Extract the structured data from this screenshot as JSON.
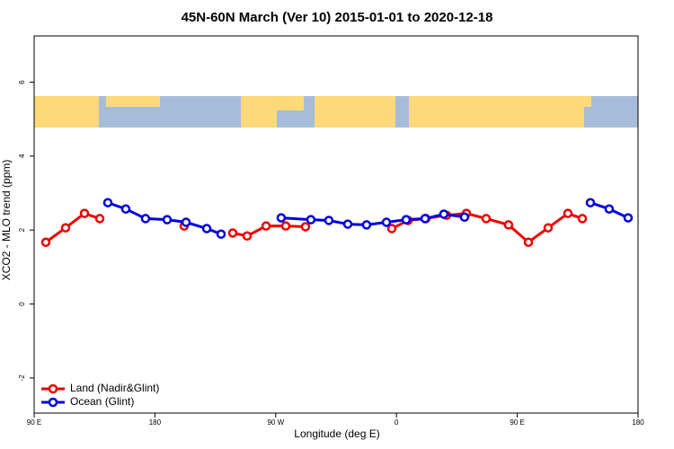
{
  "chart_data": {
    "type": "line",
    "title": "45N-60N March (Ver 10)   2015-01-01 to 2020-12-18",
    "xlabel": "Longitude (deg E)",
    "ylabel": "XCO2 - MLO trend (ppm)",
    "xlim": [
      90,
      540
    ],
    "xticks": [
      {
        "value": 90,
        "label": "90 E"
      },
      180,
      {
        "value": 270,
        "label": "90 W"
      },
      {
        "value": 360,
        "label": "0"
      },
      {
        "value": 450,
        "label": "90 E"
      },
      {
        "value": 540,
        "label": "180"
      }
    ],
    "ylim": [
      -2.95,
      7.25
    ],
    "yticks": [
      -2,
      0,
      2,
      4,
      6
    ],
    "legend": "bottom-left",
    "series": [
      {
        "name": "Land (Nadir&Glint)",
        "color": "#ee0000",
        "x": [
          98.7,
          113.4,
          127.5,
          138.9,
          null,
          201.8,
          null,
          238.0,
          248.7,
          262.8,
          277.5,
          292.2,
          null,
          356.5,
          368.6,
          381.9,
          397.3,
          412.1,
          426.8,
          443.5,
          458.3,
          473.0,
          487.7,
          498.5
        ],
        "values": [
          1.67,
          2.06,
          2.45,
          2.31,
          null,
          2.11,
          null,
          1.92,
          1.84,
          2.11,
          2.11,
          2.09,
          null,
          2.04,
          2.26,
          2.31,
          2.4,
          2.45,
          2.31,
          2.14,
          1.67,
          2.06,
          2.45,
          2.31
        ]
      },
      {
        "name": "Ocean (Glint)",
        "color": "#0000dd",
        "x": [
          144.9,
          158.3,
          173.0,
          189.1,
          203.2,
          218.6,
          229.3,
          null,
          274.1,
          296.2,
          309.6,
          323.7,
          337.7,
          352.5,
          367.2,
          381.3,
          395.3,
          410.7,
          null,
          504.5,
          518.5,
          532.6
        ],
        "values": [
          2.74,
          2.57,
          2.31,
          2.28,
          2.21,
          2.04,
          1.89,
          null,
          2.33,
          2.28,
          2.26,
          2.16,
          2.14,
          2.21,
          2.28,
          2.31,
          2.43,
          2.35,
          null,
          2.74,
          2.57,
          2.33
        ]
      }
    ]
  }
}
